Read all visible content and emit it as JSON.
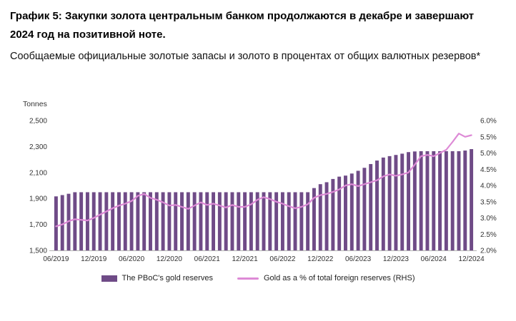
{
  "header": {
    "title": "График 5: Закупки золота центральным банком продолжаются в декабре и завершают 2024 год на позитивной ноте.",
    "subtitle": "Сообщаемые официальные золотые запасы и золото в процентах от общих валютных резервов*"
  },
  "colors": {
    "bar": "#6f4b87",
    "line": "#dd8ad6",
    "axis": "#b3b3b3",
    "tick_text": "#333333"
  },
  "chart_data": {
    "type": "bar+line",
    "title": "",
    "y_left": {
      "label": "Tonnes",
      "min": 1500,
      "max": 2500,
      "ticks": [
        "2,500",
        "2,300",
        "2,100",
        "1,900",
        "1,700",
        "1,500"
      ]
    },
    "y_right": {
      "label": "",
      "min": 2.0,
      "max": 6.0,
      "ticks": [
        "6.0%",
        "5.5%",
        "5.0%",
        "4.5%",
        "4.0%",
        "3.5%",
        "3.0%",
        "2.5%",
        "2.0%"
      ]
    },
    "x_ticks": [
      "06/2019",
      "12/2019",
      "06/2020",
      "12/2020",
      "06/2021",
      "12/2021",
      "06/2022",
      "12/2022",
      "06/2023",
      "12/2023",
      "06/2024",
      "12/2024"
    ],
    "x": [
      "06/2019",
      "07/2019",
      "08/2019",
      "09/2019",
      "10/2019",
      "11/2019",
      "12/2019",
      "01/2020",
      "02/2020",
      "03/2020",
      "04/2020",
      "05/2020",
      "06/2020",
      "07/2020",
      "08/2020",
      "09/2020",
      "10/2020",
      "11/2020",
      "12/2020",
      "01/2021",
      "02/2021",
      "03/2021",
      "04/2021",
      "05/2021",
      "06/2021",
      "07/2021",
      "08/2021",
      "09/2021",
      "10/2021",
      "11/2021",
      "12/2021",
      "01/2022",
      "02/2022",
      "03/2022",
      "04/2022",
      "05/2022",
      "06/2022",
      "07/2022",
      "08/2022",
      "09/2022",
      "10/2022",
      "11/2022",
      "12/2022",
      "01/2023",
      "02/2023",
      "03/2023",
      "04/2023",
      "05/2023",
      "06/2023",
      "07/2023",
      "08/2023",
      "09/2023",
      "10/2023",
      "11/2023",
      "12/2023",
      "01/2024",
      "02/2024",
      "03/2024",
      "04/2024",
      "05/2024",
      "06/2024",
      "07/2024",
      "08/2024",
      "09/2024",
      "10/2024",
      "11/2024",
      "12/2024"
    ],
    "series": [
      {
        "name": "The PBoC's gold reserves",
        "type": "bar",
        "axis": "left",
        "color": "#6f4b87",
        "values": [
          1916,
          1926,
          1936,
          1948,
          1948,
          1948,
          1948,
          1948,
          1948,
          1948,
          1948,
          1948,
          1948,
          1948,
          1948,
          1948,
          1948,
          1948,
          1948,
          1948,
          1948,
          1948,
          1948,
          1948,
          1948,
          1948,
          1948,
          1948,
          1948,
          1948,
          1948,
          1948,
          1948,
          1948,
          1948,
          1948,
          1948,
          1948,
          1948,
          1948,
          1948,
          1980,
          2010,
          2025,
          2050,
          2068,
          2076,
          2092,
          2113,
          2136,
          2165,
          2192,
          2215,
          2226,
          2235,
          2245,
          2257,
          2262,
          2264,
          2264,
          2264,
          2264,
          2264,
          2264,
          2264,
          2269,
          2280
        ]
      },
      {
        "name": "Gold as a % of total foreign reserves (RHS)",
        "type": "line",
        "axis": "right",
        "color": "#dd8ad6",
        "values": [
          2.74,
          2.8,
          2.9,
          2.96,
          2.94,
          2.92,
          3.0,
          3.1,
          3.2,
          3.3,
          3.38,
          3.44,
          3.52,
          3.68,
          3.74,
          3.62,
          3.56,
          3.48,
          3.38,
          3.4,
          3.34,
          3.28,
          3.38,
          3.48,
          3.4,
          3.44,
          3.38,
          3.32,
          3.4,
          3.34,
          3.34,
          3.42,
          3.56,
          3.64,
          3.58,
          3.5,
          3.44,
          3.36,
          3.3,
          3.34,
          3.42,
          3.62,
          3.7,
          3.74,
          3.8,
          3.88,
          4.0,
          4.04,
          3.98,
          4.04,
          4.1,
          4.16,
          4.28,
          4.34,
          4.3,
          4.34,
          4.4,
          4.64,
          4.9,
          4.94,
          4.9,
          5.0,
          5.1,
          5.34,
          5.6,
          5.5,
          5.55
        ]
      }
    ],
    "legend_position": "bottom",
    "grid": false
  }
}
